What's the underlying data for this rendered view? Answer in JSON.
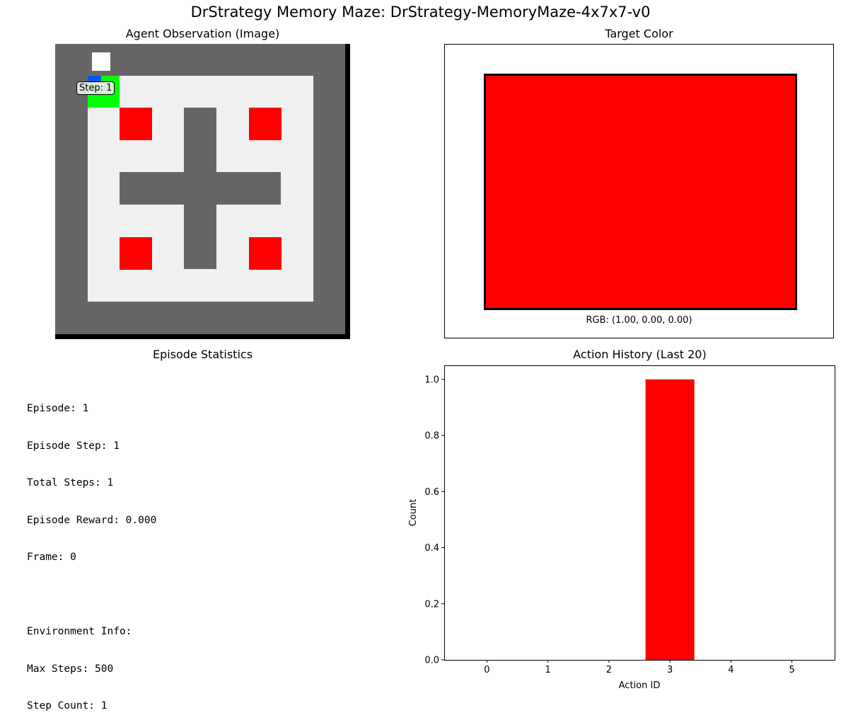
{
  "figure_title": "DrStrategy Memory Maze: DrStrategy-MemoryMaze-4x7x7-v0",
  "observation_panel": {
    "title": "Agent Observation (Image)",
    "step_label": "Step: 1",
    "colors": {
      "wall": "#666666",
      "floor": "#f0f0f0",
      "target": "#ff0000",
      "agent": "#00ff00",
      "agent_heading": "#0055ff",
      "marker": "#ffffff",
      "frame": "#000000"
    }
  },
  "target_panel": {
    "title": "Target Color",
    "rgb_text": "RGB: (1.00, 0.00, 0.00)",
    "color": "#ff0000"
  },
  "stats_panel": {
    "title": "Episode Statistics",
    "lines": [
      "Episode: 1",
      "Episode Step: 1",
      "Total Steps: 1",
      "Episode Reward: 0.000",
      "Frame: 0",
      "",
      "Environment Info:",
      "Max Steps: 500",
      "Step Count: 1"
    ]
  },
  "chart_data": {
    "type": "bar",
    "title": "Action History (Last 20)",
    "xlabel": "Action ID",
    "ylabel": "Count",
    "categories": [
      "0",
      "1",
      "2",
      "3",
      "4",
      "5"
    ],
    "values": [
      0,
      0,
      0,
      1,
      0,
      0
    ],
    "ylim": [
      0,
      1.05
    ],
    "yticks": [
      "0.0",
      "0.2",
      "0.4",
      "0.6",
      "0.8",
      "1.0"
    ],
    "bar_color": "#ff0000",
    "grid": false
  }
}
